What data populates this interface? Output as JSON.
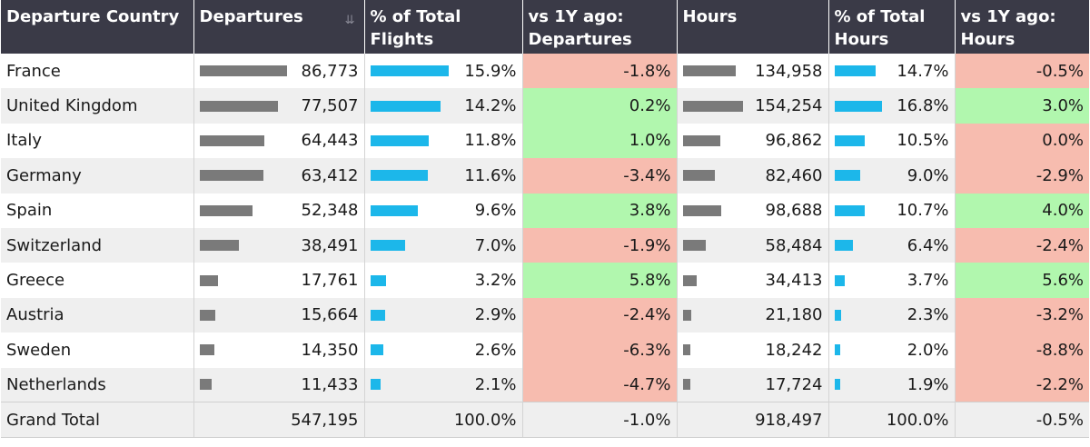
{
  "headers": {
    "country": "Departure Country",
    "departures": "Departures",
    "pct_flights": "% of Total Flights",
    "vs_departures": "vs 1Y ago: Departures",
    "hours": "Hours",
    "pct_hours": "% of Total Hours",
    "vs_hours": "vs 1Y ago: Hours",
    "sort_icon": "sort-descending-icon"
  },
  "rows": [
    {
      "country": "France",
      "departures": "86,773",
      "pct_flights": "15.9%",
      "vs_dep": "-1.8%",
      "hours": "134,958",
      "pct_hours": "14.7%",
      "vs_hours": "-0.5%"
    },
    {
      "country": "United Kingdom",
      "departures": "77,507",
      "pct_flights": "14.2%",
      "vs_dep": "0.2%",
      "hours": "154,254",
      "pct_hours": "16.8%",
      "vs_hours": "3.0%"
    },
    {
      "country": "Italy",
      "departures": "64,443",
      "pct_flights": "11.8%",
      "vs_dep": "1.0%",
      "hours": "96,862",
      "pct_hours": "10.5%",
      "vs_hours": "0.0%"
    },
    {
      "country": "Germany",
      "departures": "63,412",
      "pct_flights": "11.6%",
      "vs_dep": "-3.4%",
      "hours": "82,460",
      "pct_hours": "9.0%",
      "vs_hours": "-2.9%"
    },
    {
      "country": "Spain",
      "departures": "52,348",
      "pct_flights": "9.6%",
      "vs_dep": "3.8%",
      "hours": "98,688",
      "pct_hours": "10.7%",
      "vs_hours": "4.0%"
    },
    {
      "country": "Switzerland",
      "departures": "38,491",
      "pct_flights": "7.0%",
      "vs_dep": "-1.9%",
      "hours": "58,484",
      "pct_hours": "6.4%",
      "vs_hours": "-2.4%"
    },
    {
      "country": "Greece",
      "departures": "17,761",
      "pct_flights": "3.2%",
      "vs_dep": "5.8%",
      "hours": "34,413",
      "pct_hours": "3.7%",
      "vs_hours": "5.6%"
    },
    {
      "country": "Austria",
      "departures": "15,664",
      "pct_flights": "2.9%",
      "vs_dep": "-2.4%",
      "hours": "21,180",
      "pct_hours": "2.3%",
      "vs_hours": "-3.2%"
    },
    {
      "country": "Sweden",
      "departures": "14,350",
      "pct_flights": "2.6%",
      "vs_dep": "-6.3%",
      "hours": "18,242",
      "pct_hours": "2.0%",
      "vs_hours": "-8.8%"
    },
    {
      "country": "Netherlands",
      "departures": "11,433",
      "pct_flights": "2.1%",
      "vs_dep": "-4.7%",
      "hours": "17,724",
      "pct_hours": "1.9%",
      "vs_hours": "-2.2%"
    }
  ],
  "total": {
    "label": "Grand Total",
    "departures": "547,195",
    "pct_flights": "100.0%",
    "vs_dep": "-1.0%",
    "hours": "918,497",
    "pct_hours": "100.0%",
    "vs_hours": "-0.5%"
  },
  "colors": {
    "header_bg": "#3a3a47",
    "positive_bg": "#b1f7ae",
    "negative_bg": "#f7bcaf",
    "bar_gray": "#7a7a7a",
    "bar_blue": "#1cb7ea"
  }
}
